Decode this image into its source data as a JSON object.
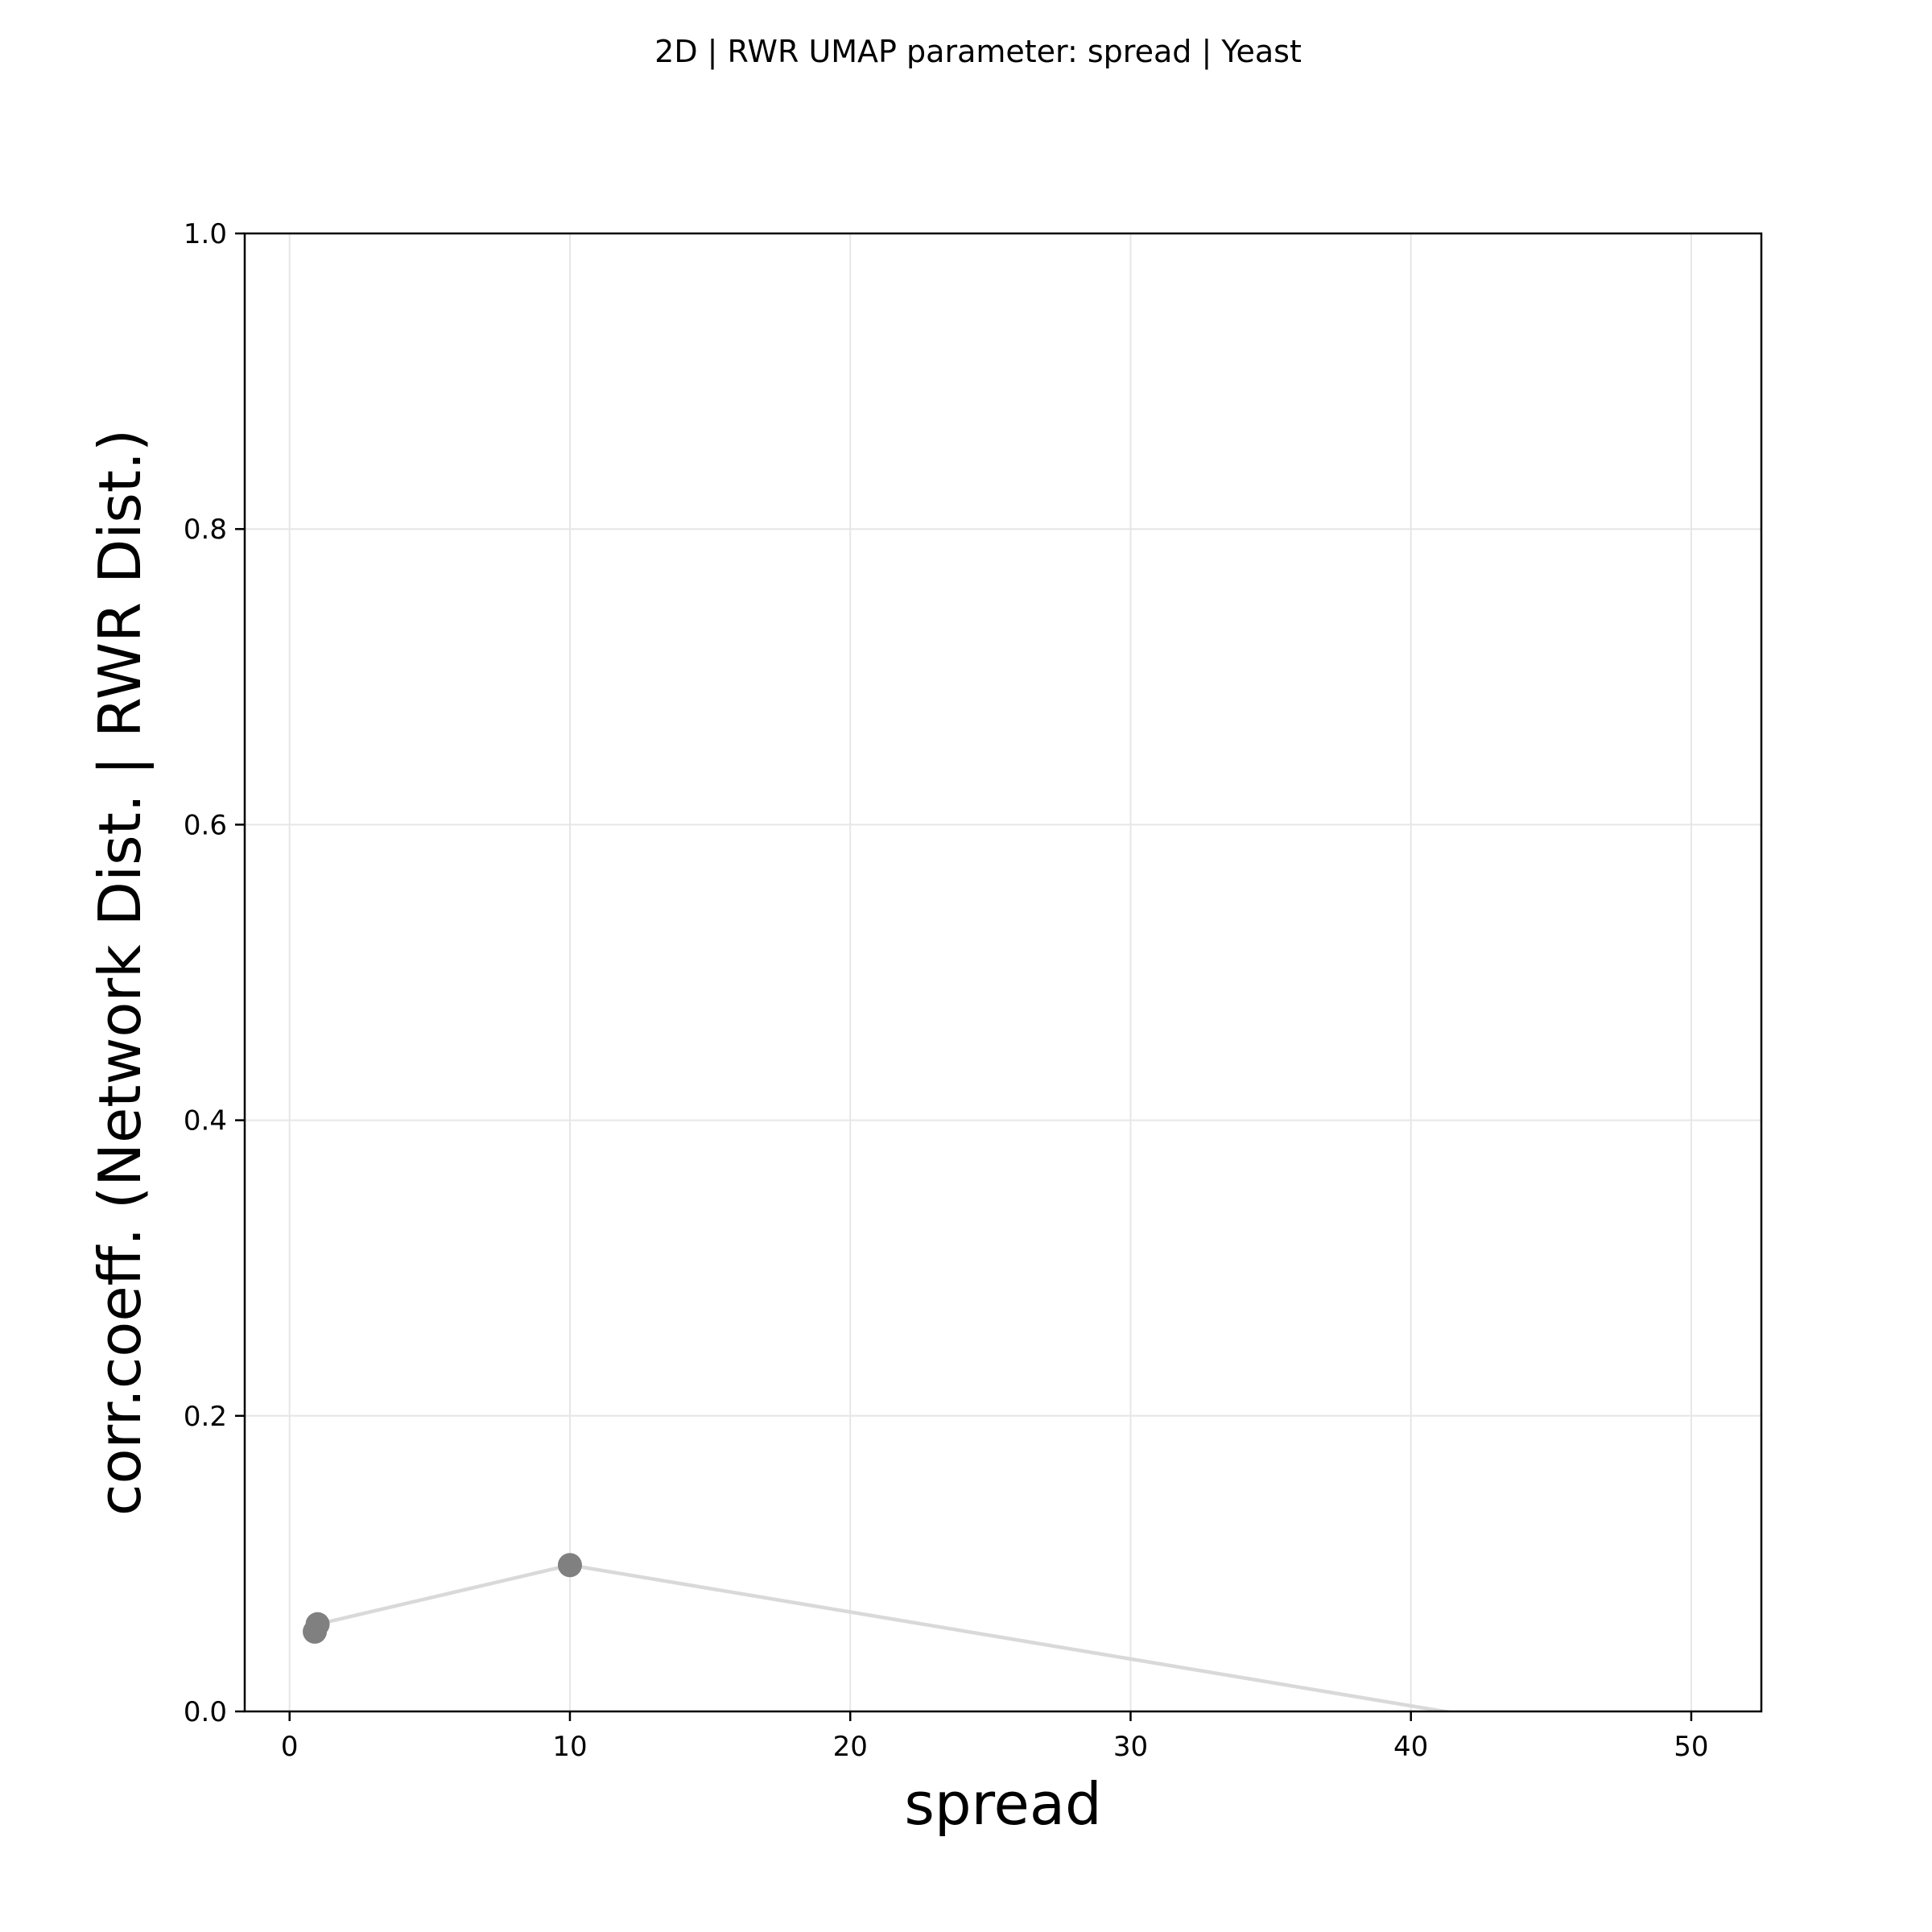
{
  "chart_data": {
    "type": "line",
    "title": "2D | RWR UMAP parameter: spread | Yeast",
    "xlabel": "spread",
    "ylabel": "corr.coeff. (Network Dist. | RWR Dist.)",
    "xlim": [
      -1.6,
      52.5
    ],
    "ylim": [
      0.0,
      1.0
    ],
    "x_ticks": [
      "0",
      "10",
      "20",
      "30",
      "40",
      "50"
    ],
    "y_ticks": [
      "0.0",
      "0.2",
      "0.4",
      "0.6",
      "0.8",
      "1.0"
    ],
    "grid": true,
    "legend": "none",
    "series": [
      {
        "x": [
          0.9,
          1.0,
          10.0,
          50.0
        ],
        "y": [
          0.054,
          0.059,
          0.099,
          -0.028
        ],
        "line_color": "#d9d9d9",
        "marker_color": "#808080"
      }
    ]
  }
}
